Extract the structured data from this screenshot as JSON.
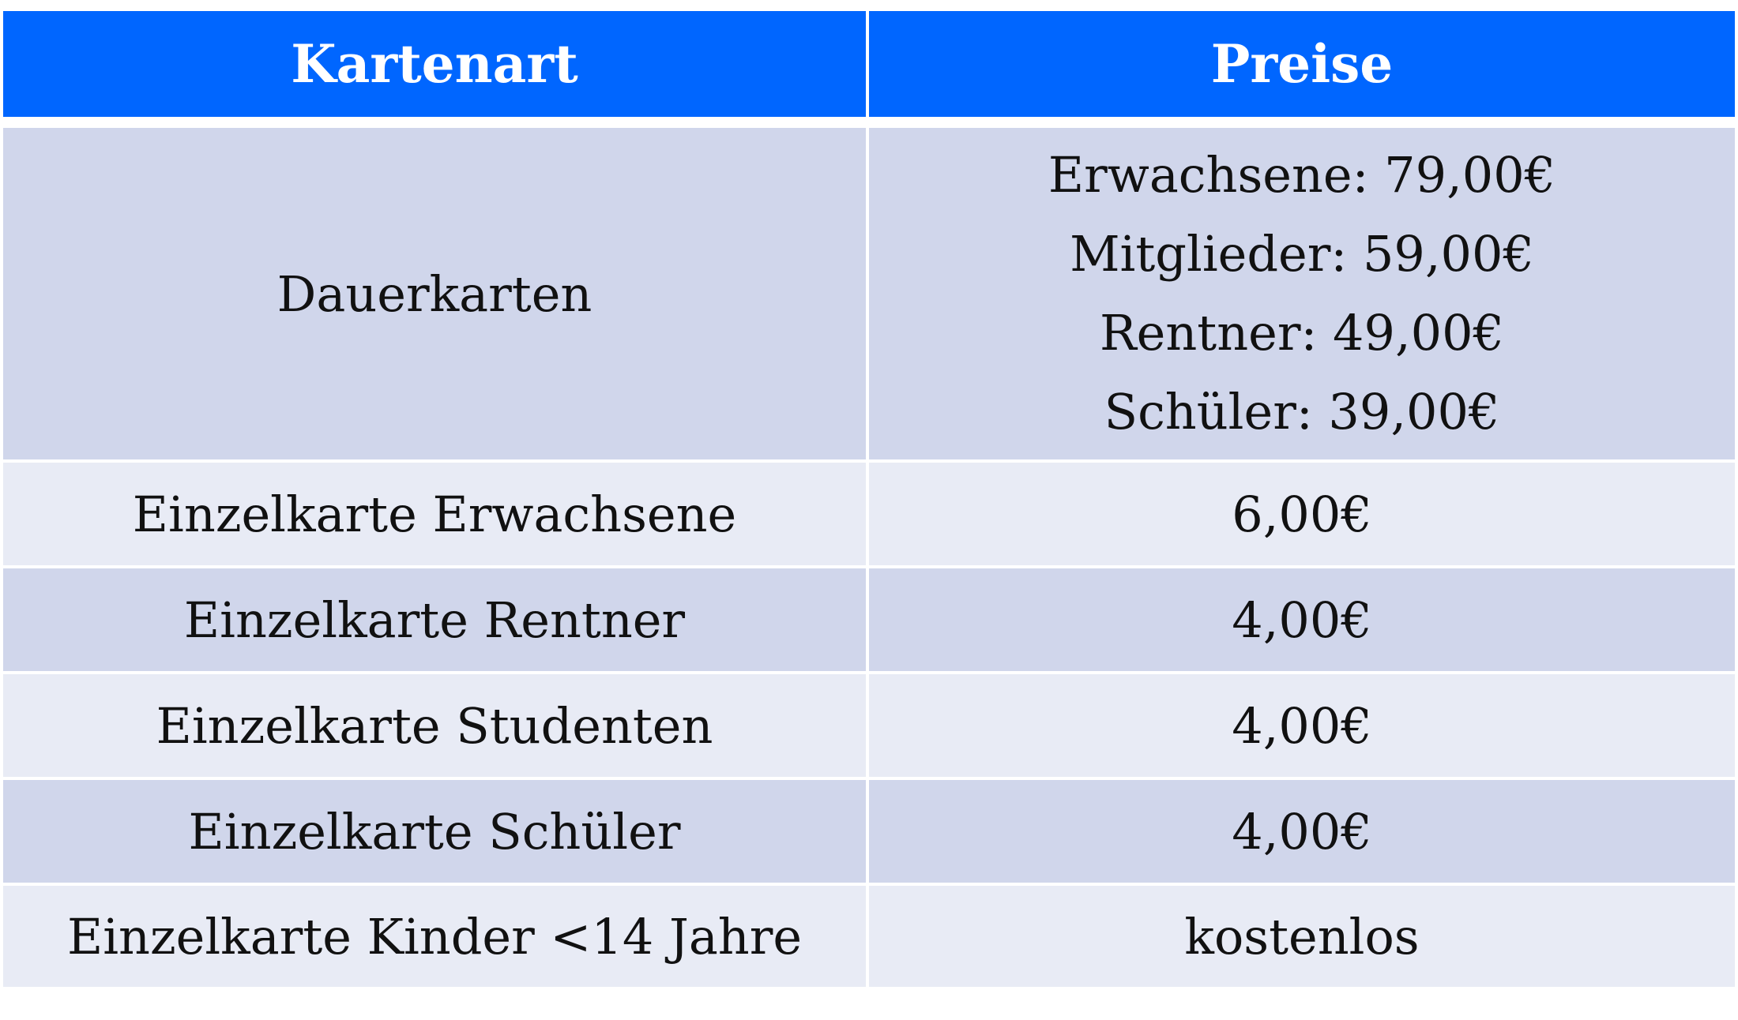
{
  "table": {
    "headers": {
      "type": "Kartenart",
      "price": "Preise"
    },
    "dauerkarten": {
      "label": "Dauerkarten",
      "prices": [
        "Erwachsene: 79,00€",
        "Mitglieder: 59,00€",
        "Rentner: 49,00€",
        "Schüler: 39,00€"
      ]
    },
    "rows": [
      {
        "type": "Einzelkarte Erwachsene",
        "price": "6,00€"
      },
      {
        "type": "Einzelkarte Rentner",
        "price": "4,00€"
      },
      {
        "type": "Einzelkarte Studenten",
        "price": "4,00€"
      },
      {
        "type": "Einzelkarte Schüler",
        "price": "4,00€"
      },
      {
        "type": "Einzelkarte Kinder <14 Jahre",
        "price": "kostenlos"
      }
    ]
  },
  "colors": {
    "header_bg": "#0066FF",
    "header_text": "#FFFFFF",
    "row_dark": "#D0D6EB",
    "row_light": "#E8EBF5",
    "text": "#111111"
  }
}
